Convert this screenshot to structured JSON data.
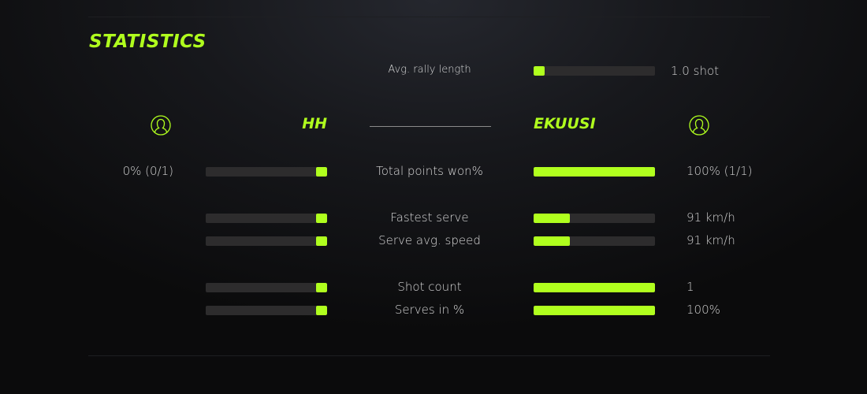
{
  "title": "STATISTICS",
  "colors": {
    "accent": "#b0ff1e",
    "track": "#2d2c2d"
  },
  "players": {
    "left": {
      "name": "HH",
      "icon": "user-circle-icon"
    },
    "right": {
      "name": "EKUUSI",
      "icon": "user-circle-icon"
    }
  },
  "rally": {
    "label": "Avg. rally length",
    "value": "1.0 shot",
    "fill_pct": 9
  },
  "stats": [
    {
      "label": "Total points won%",
      "left_value": "0% (0/1)",
      "right_value": "100% (1/1)",
      "left_fill_pct": 9,
      "right_fill_pct": 100
    },
    {
      "label": "Fastest serve",
      "left_value": "",
      "right_value": "91 km/h",
      "left_fill_pct": 9,
      "right_fill_pct": 30
    },
    {
      "label": "Serve avg. speed",
      "left_value": "",
      "right_value": "91 km/h",
      "left_fill_pct": 9,
      "right_fill_pct": 30
    },
    {
      "label": "Shot count",
      "left_value": "",
      "right_value": "1",
      "left_fill_pct": 9,
      "right_fill_pct": 100
    },
    {
      "label": "Serves in %",
      "left_value": "",
      "right_value": "100%",
      "left_fill_pct": 9,
      "right_fill_pct": 100
    }
  ]
}
